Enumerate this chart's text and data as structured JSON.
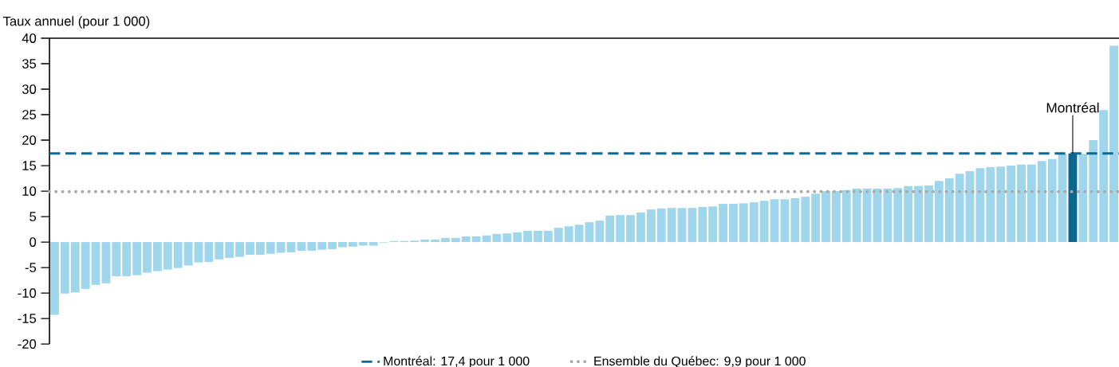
{
  "chart_data": {
    "type": "bar",
    "ylabel": "Taux annuel (pour 1 000)",
    "categories": [
      null,
      null,
      null,
      null,
      null,
      null,
      null,
      null,
      null,
      null,
      null,
      null,
      null,
      null,
      null,
      null,
      null,
      null,
      null,
      null,
      null,
      null,
      null,
      null,
      null,
      null,
      null,
      null,
      null,
      null,
      null,
      null,
      null,
      null,
      null,
      null,
      null,
      null,
      null,
      null,
      null,
      null,
      null,
      null,
      null,
      null,
      null,
      null,
      null,
      null,
      null,
      null,
      null,
      null,
      null,
      null,
      null,
      null,
      null,
      null,
      null,
      null,
      null,
      null,
      null,
      null,
      null,
      null,
      null,
      null,
      null,
      null,
      null,
      null,
      null,
      null,
      null,
      null,
      null,
      null,
      null,
      null,
      null,
      null,
      null,
      null,
      null,
      null,
      null,
      null,
      null,
      null,
      null,
      null,
      null,
      null,
      null,
      null,
      null,
      null,
      null,
      null,
      null,
      null
    ],
    "values": [
      -14.3,
      -10.1,
      -9.9,
      -9.2,
      -8.4,
      -8.1,
      -6.7,
      -6.7,
      -6.5,
      -6.0,
      -5.7,
      -5.4,
      -5.1,
      -4.6,
      -4.0,
      -3.9,
      -3.4,
      -3.1,
      -2.9,
      -2.5,
      -2.5,
      -2.3,
      -2.1,
      -2.0,
      -1.7,
      -1.7,
      -1.5,
      -1.4,
      -1.0,
      -0.9,
      -0.7,
      -0.7,
      -0.1,
      0.2,
      0.2,
      0.3,
      0.5,
      0.5,
      0.8,
      0.8,
      1.1,
      1.1,
      1.3,
      1.6,
      1.7,
      1.9,
      2.2,
      2.2,
      2.2,
      2.8,
      3.1,
      3.4,
      3.9,
      4.2,
      5.2,
      5.3,
      5.3,
      5.8,
      6.4,
      6.6,
      6.7,
      6.7,
      6.7,
      6.9,
      7.0,
      7.5,
      7.5,
      7.6,
      7.8,
      8.1,
      8.4,
      8.4,
      8.6,
      8.9,
      9.5,
      10.0,
      10.0,
      10.2,
      10.5,
      10.5,
      10.5,
      10.5,
      10.6,
      11.0,
      11.0,
      11.1,
      12.0,
      12.5,
      13.4,
      13.9,
      14.5,
      14.7,
      14.8,
      15.0,
      15.2,
      15.2,
      15.9,
      16.3,
      17.2,
      17.4,
      17.3,
      20.0,
      25.9,
      38.5
    ],
    "colors": [
      "#a0d6ec",
      "#a0d6ec",
      "#a0d6ec",
      "#a0d6ec",
      "#a0d6ec",
      "#a0d6ec",
      "#a0d6ec",
      "#a0d6ec",
      "#a0d6ec",
      "#a0d6ec",
      "#a0d6ec",
      "#a0d6ec",
      "#a0d6ec",
      "#a0d6ec",
      "#a0d6ec",
      "#a0d6ec",
      "#a0d6ec",
      "#a0d6ec",
      "#a0d6ec",
      "#a0d6ec",
      "#a0d6ec",
      "#a0d6ec",
      "#a0d6ec",
      "#a0d6ec",
      "#a0d6ec",
      "#a0d6ec",
      "#a0d6ec",
      "#a0d6ec",
      "#a0d6ec",
      "#a0d6ec",
      "#a0d6ec",
      "#a0d6ec",
      "#a0d6ec",
      "#a0d6ec",
      "#a0d6ec",
      "#a0d6ec",
      "#a0d6ec",
      "#a0d6ec",
      "#a0d6ec",
      "#a0d6ec",
      "#a0d6ec",
      "#a0d6ec",
      "#a0d6ec",
      "#a0d6ec",
      "#a0d6ec",
      "#a0d6ec",
      "#a0d6ec",
      "#a0d6ec",
      "#a0d6ec",
      "#a0d6ec",
      "#a0d6ec",
      "#a0d6ec",
      "#a0d6ec",
      "#a0d6ec",
      "#a0d6ec",
      "#a0d6ec",
      "#a0d6ec",
      "#a0d6ec",
      "#a0d6ec",
      "#a0d6ec",
      "#a0d6ec",
      "#a0d6ec",
      "#a0d6ec",
      "#a0d6ec",
      "#a0d6ec",
      "#a0d6ec",
      "#a0d6ec",
      "#a0d6ec",
      "#a0d6ec",
      "#a0d6ec",
      "#a0d6ec",
      "#a0d6ec",
      "#a0d6ec",
      "#a0d6ec",
      "#a0d6ec",
      "#a0d6ec",
      "#a0d6ec",
      "#a0d6ec",
      "#a0d6ec",
      "#a0d6ec",
      "#a0d6ec",
      "#a0d6ec",
      "#a0d6ec",
      "#a0d6ec",
      "#a0d6ec",
      "#a0d6ec",
      "#a0d6ec",
      "#a0d6ec",
      "#a0d6ec",
      "#a0d6ec",
      "#a0d6ec",
      "#a0d6ec",
      "#a0d6ec",
      "#a0d6ec",
      "#a0d6ec",
      "#a0d6ec",
      "#a0d6ec",
      "#a0d6ec",
      "#a0d6ec",
      "#0b6690",
      "#a0d6ec",
      "#a0d6ec",
      "#a0d6ec",
      "#a0d6ec"
    ],
    "ylim": [
      -20,
      40
    ],
    "yticks": [
      -20,
      -15,
      -10,
      -5,
      0,
      5,
      10,
      15,
      20,
      25,
      30,
      35,
      40
    ],
    "ref_lines": [
      {
        "axis": "y",
        "value": 17.4,
        "label": "Montréal: 17,4 pour 1 000",
        "color": "#0b6a97",
        "line_style": "dashed"
      },
      {
        "axis": "y",
        "value": 9.9,
        "label": "Ensemble du Québec: 9,9 pour 1 000",
        "color": "#aaaaaa",
        "line_style": "dotted"
      }
    ],
    "annotations": [
      {
        "text": "Montréal",
        "y": 17.4
      }
    ],
    "legend": "bottom",
    "grid": false
  }
}
